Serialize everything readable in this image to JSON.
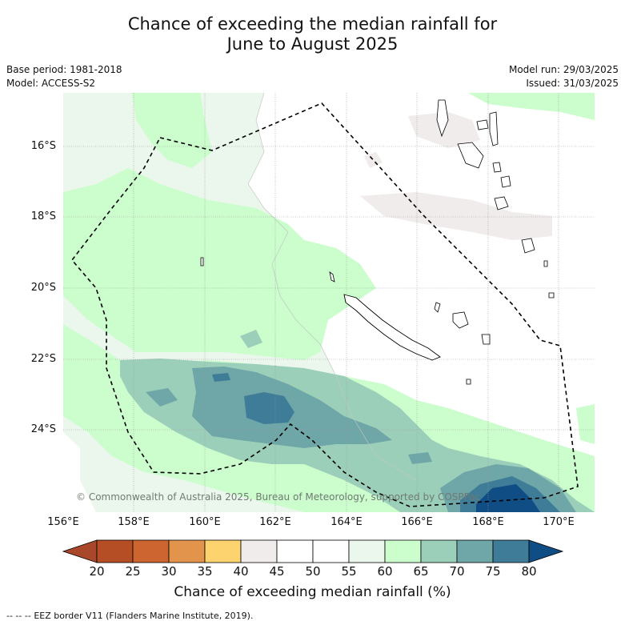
{
  "title_line1": "Chance of exceeding the median rainfall for",
  "title_line2": "June to August 2025",
  "meta": {
    "base_period": "Base period: 1981-2018",
    "model": "Model: ACCESS-S2",
    "model_run": "Model run: 29/03/2025",
    "issued": "Issued: 31/03/2025"
  },
  "map": {
    "lon_labels": [
      "156°E",
      "158°E",
      "160°E",
      "162°E",
      "164°E",
      "166°E",
      "168°E",
      "170°E"
    ],
    "lat_labels": [
      "16°S",
      "18°S",
      "20°S",
      "22°S",
      "24°S"
    ],
    "copyright": "© Commonwealth of Australia 2025, Bureau of Meteorology, supported by COSPPac"
  },
  "colorbar": {
    "ticks": [
      "20",
      "25",
      "30",
      "35",
      "40",
      "45",
      "50",
      "55",
      "60",
      "65",
      "70",
      "75",
      "80"
    ],
    "colors": [
      "#a8472a",
      "#b54e25",
      "#cd6531",
      "#e3944c",
      "#fdd36f",
      "#efeceb",
      "#ffffff",
      "#ffffff",
      "#ebf7ed",
      "#cbfdcd",
      "#9ccfb9",
      "#6fa6a7",
      "#3f7c98",
      "#104d84"
    ],
    "label": "Chance of exceeding median rainfall (%)"
  },
  "legend": {
    "eez_text": "EEZ border V11 (Flanders Marine Institute, 2019)."
  }
}
